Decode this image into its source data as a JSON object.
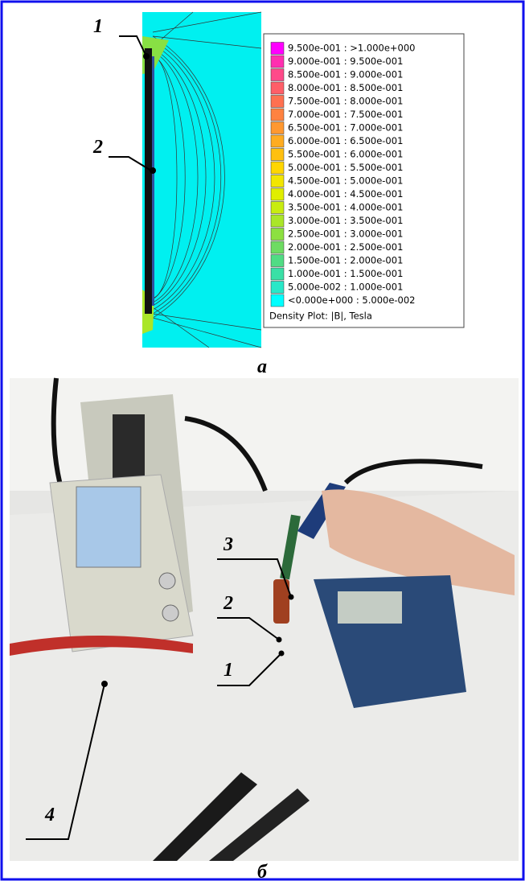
{
  "panel_a": {
    "labels": [
      "1",
      "2"
    ],
    "legend": {
      "items": [
        {
          "label": "9.500e-001 : >1.000e+000",
          "color": "#ff00ff"
        },
        {
          "label": "9.000e-001 : 9.500e-001",
          "color": "#ff2fb0"
        },
        {
          "label": "8.500e-001 : 9.000e-001",
          "color": "#ff4a8a"
        },
        {
          "label": "8.000e-001 : 8.500e-001",
          "color": "#ff5e68"
        },
        {
          "label": "7.500e-001 : 8.000e-001",
          "color": "#ff7050"
        },
        {
          "label": "7.000e-001 : 7.500e-001",
          "color": "#ff8240"
        },
        {
          "label": "6.500e-001 : 7.000e-001",
          "color": "#ff9830"
        },
        {
          "label": "6.000e-001 : 6.500e-001",
          "color": "#ffac20"
        },
        {
          "label": "5.500e-001 : 6.000e-001",
          "color": "#ffc010"
        },
        {
          "label": "5.000e-001 : 5.500e-001",
          "color": "#ffd600"
        },
        {
          "label": "4.500e-001 : 5.000e-001",
          "color": "#f2e600"
        },
        {
          "label": "4.000e-001 : 4.500e-001",
          "color": "#e0ee00"
        },
        {
          "label": "3.500e-001 : 4.000e-001",
          "color": "#c8ec10"
        },
        {
          "label": "3.000e-001 : 3.500e-001",
          "color": "#aae628"
        },
        {
          "label": "2.500e-001 : 3.000e-001",
          "color": "#8ce040"
        },
        {
          "label": "2.000e-001 : 2.500e-001",
          "color": "#6edc62"
        },
        {
          "label": "1.500e-001 : 2.000e-001",
          "color": "#50dc84"
        },
        {
          "label": "1.000e-001 : 1.500e-001",
          "color": "#3ae0a6"
        },
        {
          "label": "5.000e-002 : 1.000e-001",
          "color": "#28e8c8"
        },
        {
          "label": "<0.000e+000 : 5.000e-002",
          "color": "#00ffff"
        }
      ],
      "footer": "Density Plot: |B|, Tesla"
    },
    "caption": "а"
  },
  "panel_b": {
    "labels": [
      "3",
      "2",
      "1",
      "4"
    ],
    "caption": "б"
  }
}
